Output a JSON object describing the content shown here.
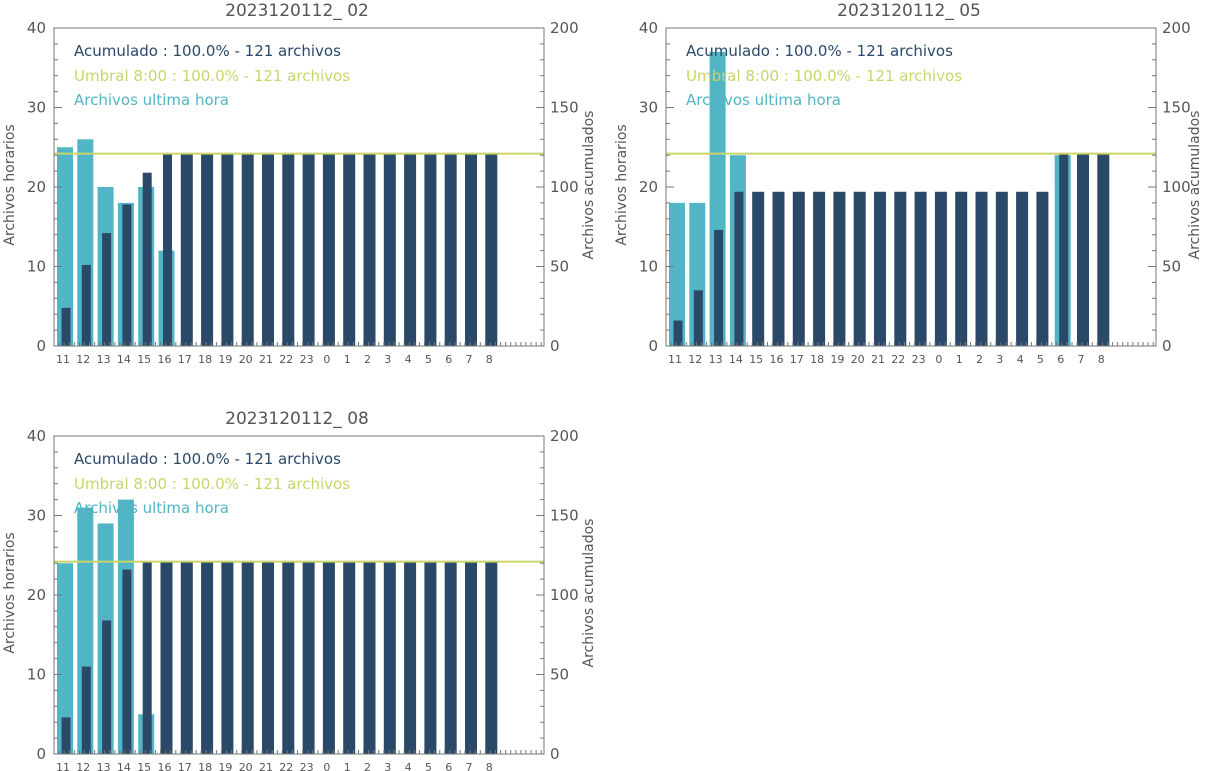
{
  "colors": {
    "hourly": "#52b5c5",
    "cumulative": "#2a4868",
    "threshold": "#c9d46a",
    "axis": "#777777",
    "text": "#555555"
  },
  "chart_data": [
    {
      "type": "bar",
      "title": "2023120112_ 02",
      "ylabel": "Archivos horarios",
      "y2label": "Archivos acumulados",
      "ylim": [
        0,
        40
      ],
      "y2lim": [
        0,
        200
      ],
      "yticks": [
        "0",
        "10",
        "20",
        "30",
        "40"
      ],
      "y2ticks": [
        "0",
        "50",
        "100",
        "150",
        "200"
      ],
      "categories": [
        "11",
        "12",
        "13",
        "14",
        "15",
        "16",
        "17",
        "18",
        "19",
        "20",
        "21",
        "22",
        "23",
        "0",
        "1",
        "2",
        "3",
        "4",
        "5",
        "6",
        "7",
        "8"
      ],
      "threshold": 121,
      "legend": {
        "cumulative": "Acumulado : 100.0% - 121 archivos",
        "threshold": "Umbral 8:00 : 100.0% - 121 archivos",
        "hourly": "Archivos ultima hora"
      },
      "series": [
        {
          "name": "Archivos ultima hora",
          "axis": "left",
          "values": [
            25,
            26,
            20,
            18,
            20,
            12,
            0,
            0,
            0,
            0,
            0,
            0,
            0,
            0,
            0,
            0,
            0,
            0,
            0,
            0,
            0,
            0
          ]
        },
        {
          "name": "Acumulado",
          "axis": "right",
          "values": [
            24,
            51,
            71,
            89,
            109,
            121,
            121,
            121,
            121,
            121,
            121,
            121,
            121,
            121,
            121,
            121,
            121,
            121,
            121,
            121,
            121,
            121
          ]
        }
      ]
    },
    {
      "type": "bar",
      "title": "2023120112_ 05",
      "ylabel": "Archivos horarios",
      "y2label": "Archivos acumulados",
      "ylim": [
        0,
        40
      ],
      "y2lim": [
        0,
        200
      ],
      "yticks": [
        "0",
        "10",
        "20",
        "30",
        "40"
      ],
      "y2ticks": [
        "0",
        "50",
        "100",
        "150",
        "200"
      ],
      "categories": [
        "11",
        "12",
        "13",
        "14",
        "15",
        "16",
        "17",
        "18",
        "19",
        "20",
        "21",
        "22",
        "23",
        "0",
        "1",
        "2",
        "3",
        "4",
        "5",
        "6",
        "7",
        "8"
      ],
      "threshold": 121,
      "legend": {
        "cumulative": "Acumulado : 100.0% - 121 archivos",
        "threshold": "Umbral 8:00 : 100.0% - 121 archivos",
        "hourly": "Archivos ultima hora"
      },
      "series": [
        {
          "name": "Archivos ultima hora",
          "axis": "left",
          "values": [
            18,
            18,
            37,
            24,
            0,
            0,
            0,
            0,
            0,
            0,
            0,
            0,
            0,
            0,
            0,
            0,
            0,
            0,
            0,
            24,
            0,
            0
          ]
        },
        {
          "name": "Acumulado",
          "axis": "right",
          "values": [
            16,
            35,
            73,
            97,
            97,
            97,
            97,
            97,
            97,
            97,
            97,
            97,
            97,
            97,
            97,
            97,
            97,
            97,
            97,
            121,
            121,
            121
          ]
        }
      ]
    },
    {
      "type": "bar",
      "title": "2023120112_ 08",
      "ylabel": "Archivos horarios",
      "y2label": "Archivos acumulados",
      "ylim": [
        0,
        40
      ],
      "y2lim": [
        0,
        200
      ],
      "yticks": [
        "0",
        "10",
        "20",
        "30",
        "40"
      ],
      "y2ticks": [
        "0",
        "50",
        "100",
        "150",
        "200"
      ],
      "categories": [
        "11",
        "12",
        "13",
        "14",
        "15",
        "16",
        "17",
        "18",
        "19",
        "20",
        "21",
        "22",
        "23",
        "0",
        "1",
        "2",
        "3",
        "4",
        "5",
        "6",
        "7",
        "8"
      ],
      "threshold": 121,
      "legend": {
        "cumulative": "Acumulado : 100.0% - 121 archivos",
        "threshold": "Umbral 8:00 : 100.0% - 121 archivos",
        "hourly": "Archivos ultima hora"
      },
      "series": [
        {
          "name": "Archivos ultima hora",
          "axis": "left",
          "values": [
            24,
            31,
            29,
            32,
            5,
            0,
            0,
            0,
            0,
            0,
            0,
            0,
            0,
            0,
            0,
            0,
            0,
            0,
            0,
            0,
            0,
            0
          ]
        },
        {
          "name": "Acumulado",
          "axis": "right",
          "values": [
            23,
            55,
            84,
            116,
            121,
            121,
            121,
            121,
            121,
            121,
            121,
            121,
            121,
            121,
            121,
            121,
            121,
            121,
            121,
            121,
            121,
            121
          ]
        }
      ]
    }
  ]
}
